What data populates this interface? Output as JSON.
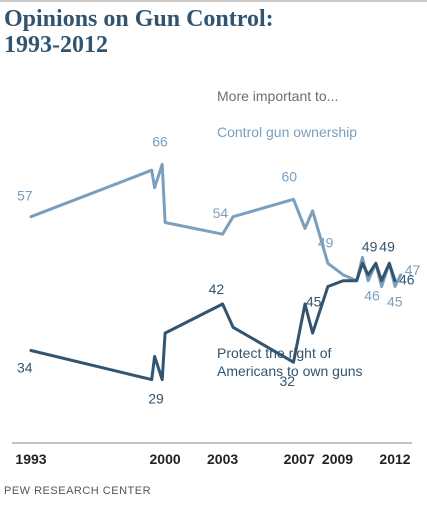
{
  "title_line1": "Opinions on Gun Control:",
  "title_line2": "1993-2012",
  "source": "PEW RESEARCH CENTER",
  "chart_data": {
    "type": "line",
    "title": "Opinions on Gun Control: 1993-2012",
    "legend_header": "More important to...",
    "x_ticks": [
      "1993",
      "2000",
      "2003",
      "2007",
      "2009",
      "2012"
    ],
    "xlim": [
      1993,
      2012.5
    ],
    "ylim": [
      20,
      75
    ],
    "grid": false,
    "series": [
      {
        "name": "Control gun ownership",
        "color": "#7b9fbd",
        "points": [
          {
            "x": 1993.0,
            "y": 57
          },
          {
            "x": 1999.3,
            "y": 65
          },
          {
            "x": 1999.45,
            "y": 62
          },
          {
            "x": 1999.85,
            "y": 66
          },
          {
            "x": 2000.0,
            "y": 56
          },
          {
            "x": 2003.0,
            "y": 54
          },
          {
            "x": 2003.55,
            "y": 57
          },
          {
            "x": 2006.7,
            "y": 60
          },
          {
            "x": 2007.3,
            "y": 55
          },
          {
            "x": 2007.7,
            "y": 58
          },
          {
            "x": 2008.5,
            "y": 49
          },
          {
            "x": 2009.3,
            "y": 47
          },
          {
            "x": 2010.0,
            "y": 46
          },
          {
            "x": 2010.3,
            "y": 50
          },
          {
            "x": 2010.6,
            "y": 46
          },
          {
            "x": 2011.0,
            "y": 49
          },
          {
            "x": 2011.3,
            "y": 45
          },
          {
            "x": 2011.7,
            "y": 49
          },
          {
            "x": 2012.0,
            "y": 45
          },
          {
            "x": 2012.3,
            "y": 47
          }
        ],
        "labels": [
          {
            "text": "57",
            "x": 1993.0,
            "y": 57
          },
          {
            "text": "66",
            "x": 1999.85,
            "y": 66
          },
          {
            "text": "54",
            "x": 2003.0,
            "y": 54
          },
          {
            "text": "60",
            "x": 2006.7,
            "y": 60
          },
          {
            "text": "49",
            "x": 2008.5,
            "y": 49
          },
          {
            "text": "46",
            "x": 2010.6,
            "y": 46
          },
          {
            "text": "45",
            "x": 2012.0,
            "y": 45
          },
          {
            "text": "47",
            "x": 2012.3,
            "y": 47
          }
        ]
      },
      {
        "name": "Protect the right of Americans to own guns",
        "color": "#33546f",
        "points": [
          {
            "x": 1993.0,
            "y": 34
          },
          {
            "x": 1999.3,
            "y": 29
          },
          {
            "x": 1999.45,
            "y": 33
          },
          {
            "x": 1999.85,
            "y": 29
          },
          {
            "x": 2000.0,
            "y": 37
          },
          {
            "x": 2003.0,
            "y": 42
          },
          {
            "x": 2003.55,
            "y": 38
          },
          {
            "x": 2006.7,
            "y": 32
          },
          {
            "x": 2007.3,
            "y": 42
          },
          {
            "x": 2007.7,
            "y": 37
          },
          {
            "x": 2008.5,
            "y": 45
          },
          {
            "x": 2009.3,
            "y": 46
          },
          {
            "x": 2010.0,
            "y": 46
          },
          {
            "x": 2010.3,
            "y": 49
          },
          {
            "x": 2010.6,
            "y": 47
          },
          {
            "x": 2011.0,
            "y": 49
          },
          {
            "x": 2011.3,
            "y": 46
          },
          {
            "x": 2011.7,
            "y": 49
          },
          {
            "x": 2012.0,
            "y": 46
          }
        ],
        "labels": [
          {
            "text": "34",
            "x": 1993.0,
            "y": 34
          },
          {
            "text": "29",
            "x": 1999.85,
            "y": 29
          },
          {
            "text": "42",
            "x": 2003.0,
            "y": 42
          },
          {
            "text": "32",
            "x": 2006.7,
            "y": 32
          },
          {
            "text": "45",
            "x": 2008.5,
            "y": 45
          },
          {
            "text": "49",
            "x": 2011.0,
            "y": 49
          },
          {
            "text": "49",
            "x": 2011.7,
            "y": 49
          },
          {
            "text": "46",
            "x": 2012.0,
            "y": 46
          }
        ]
      }
    ]
  }
}
